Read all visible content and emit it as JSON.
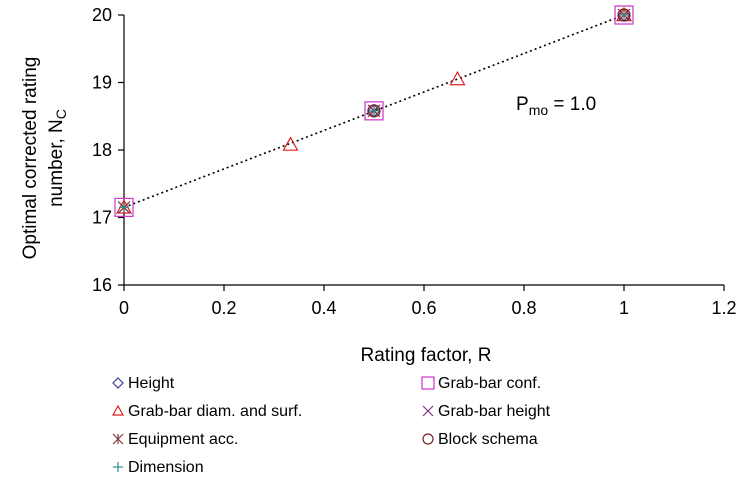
{
  "chart_data": {
    "type": "scatter",
    "title": "",
    "xlabel": "Rating factor, R",
    "ylabel_line1": "Optimal corrected rating",
    "ylabel_line2_main": "number, N",
    "ylabel_line2_sub": "C",
    "xlim": [
      0,
      1.2
    ],
    "ylim": [
      16,
      20
    ],
    "x_ticks": [
      0,
      0.2,
      0.4,
      0.6,
      0.8,
      1.0,
      1.2
    ],
    "x_tick_labels": [
      "0",
      "0.2",
      "0.4",
      "0.6",
      "0.8",
      "1",
      "1.2"
    ],
    "y_ticks": [
      16,
      17,
      18,
      19,
      20
    ],
    "y_tick_labels": [
      "16",
      "17",
      "18",
      "19",
      "20"
    ],
    "grid": false,
    "legend_placement": "bottom",
    "annotation": {
      "main": "P",
      "sub": "mo",
      "rest": " = 1.0"
    },
    "trendline": {
      "style": "dotted",
      "color": "#000000",
      "x": [
        0,
        1
      ],
      "y": [
        17.15,
        20.0
      ]
    },
    "series": [
      {
        "name": "Height",
        "marker": "diamond",
        "color": "#3f3f9f",
        "x": [
          0.5,
          1
        ],
        "y": [
          18.58,
          20.0
        ]
      },
      {
        "name": "Grab-bar conf.",
        "marker": "square",
        "color": "#cc33cc",
        "x": [
          0,
          0.5,
          1
        ],
        "y": [
          17.15,
          18.58,
          20.0
        ]
      },
      {
        "name": "Grab-bar diam. and surf.",
        "marker": "triangle",
        "color": "#e02020",
        "x": [
          0,
          0.333,
          0.667,
          1
        ],
        "y": [
          17.15,
          18.08,
          19.05,
          20.0
        ]
      },
      {
        "name": "Grab-bar height",
        "marker": "x",
        "color": "#8b2f8b",
        "x": [
          0,
          0.5,
          1
        ],
        "y": [
          17.15,
          18.58,
          20.0
        ]
      },
      {
        "name": "Equipment acc.",
        "marker": "star",
        "color": "#8b3a3a",
        "x": [
          0,
          0.5,
          1
        ],
        "y": [
          17.15,
          18.58,
          20.0
        ]
      },
      {
        "name": "Block schema",
        "marker": "circle",
        "color": "#7a2020",
        "x": [
          0.5,
          1
        ],
        "y": [
          18.58,
          20.0
        ]
      },
      {
        "name": "Dimension",
        "marker": "plus",
        "color": "#2f8f8f",
        "x": [
          0,
          0.5,
          1
        ],
        "y": [
          17.15,
          18.58,
          20.0
        ]
      }
    ]
  }
}
